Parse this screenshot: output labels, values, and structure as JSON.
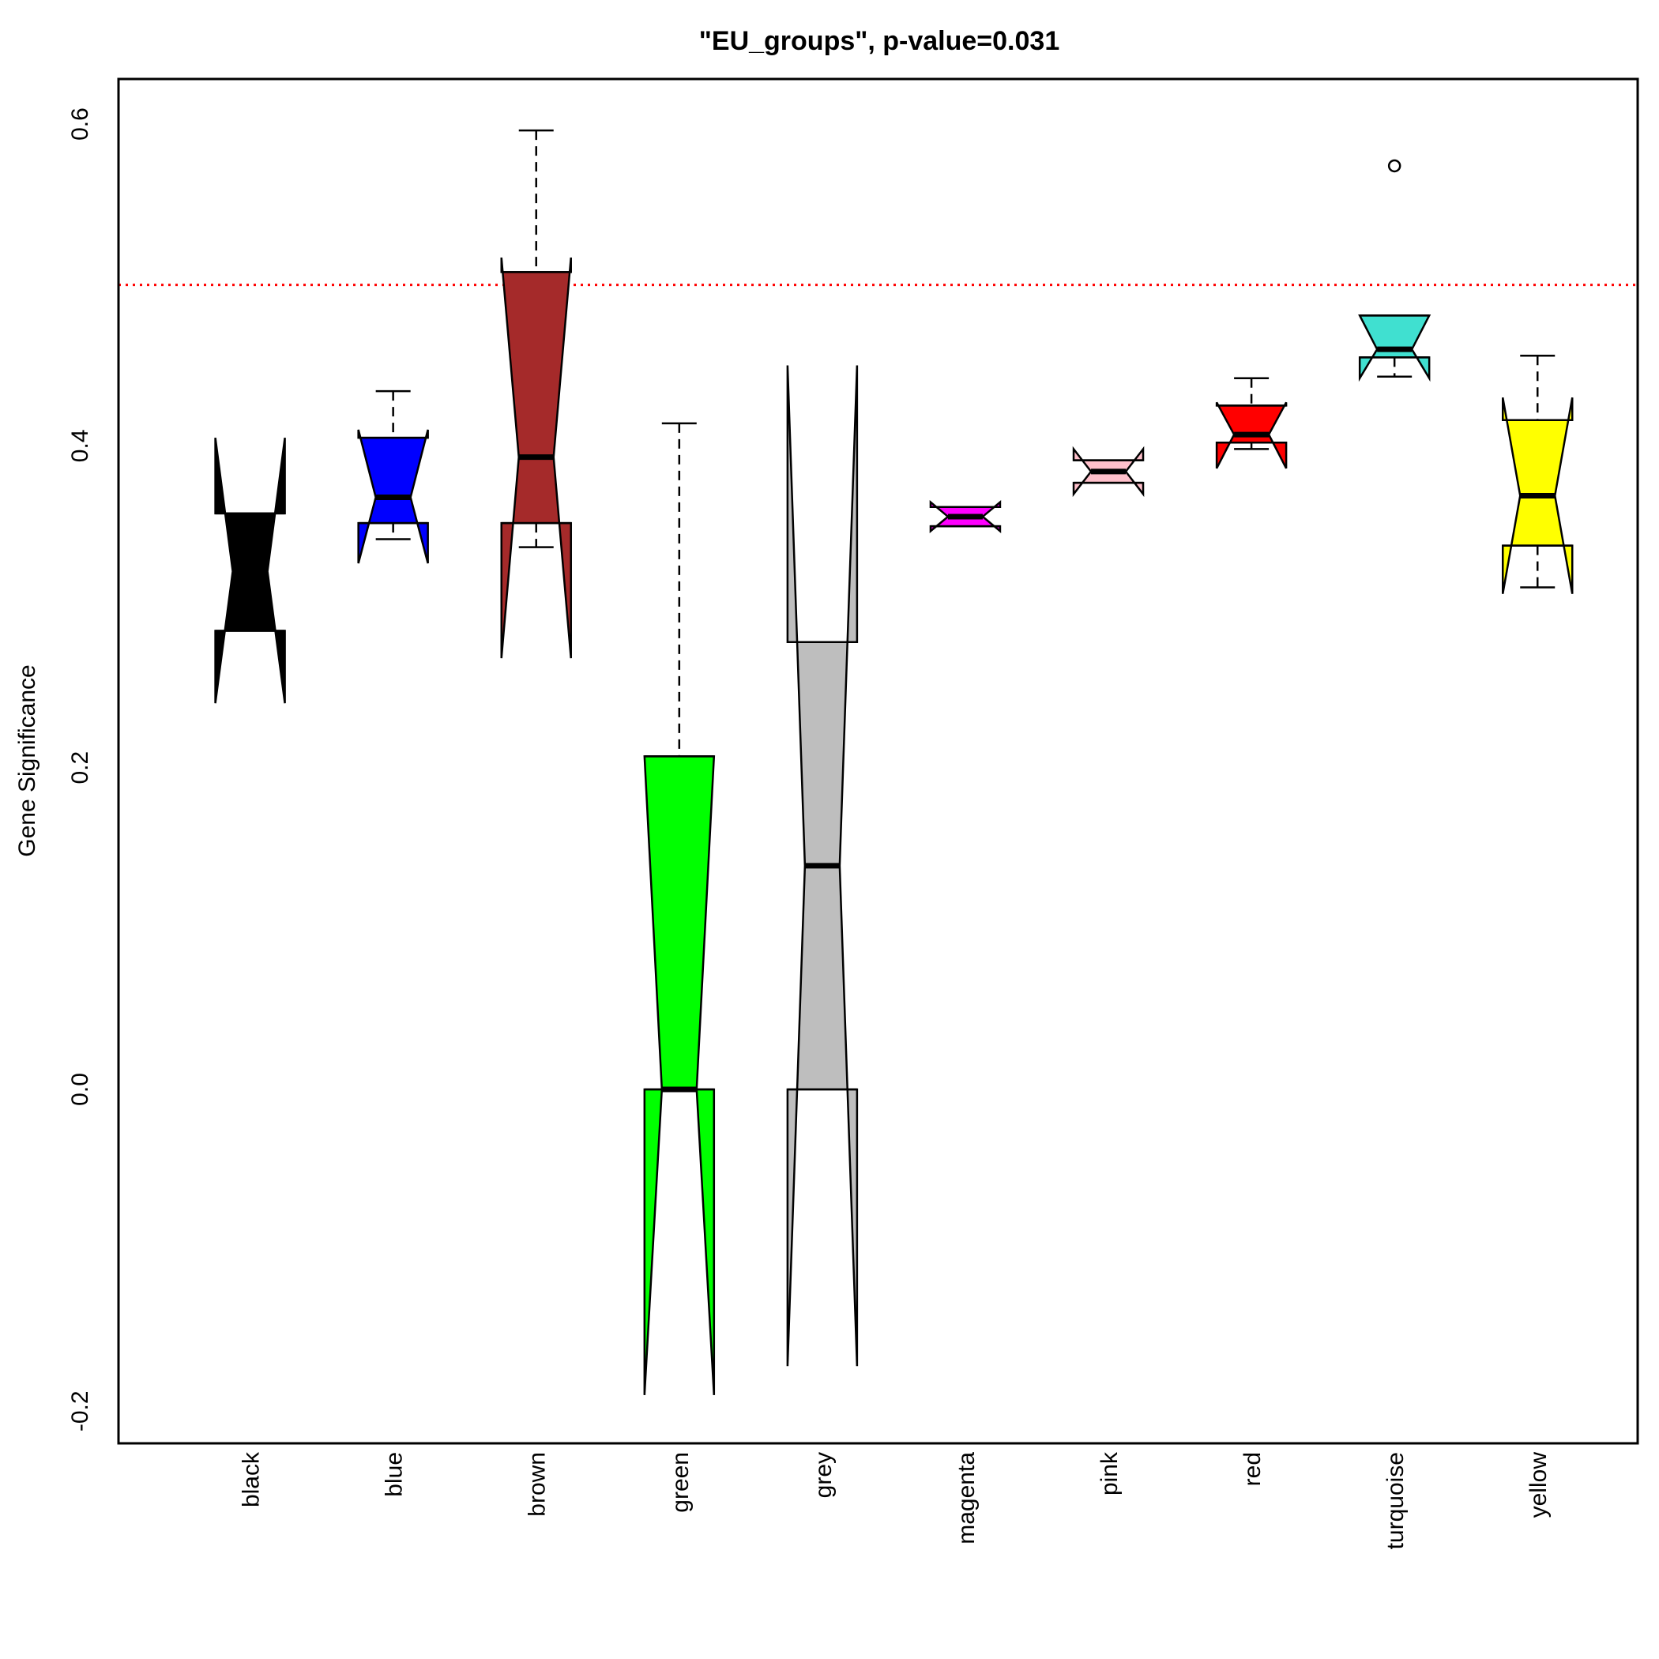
{
  "chart_data": {
    "type": "boxplot",
    "title": "\"EU_groups\", p-value=0.031",
    "ylabel": "Gene Significance",
    "xlabel": "",
    "ylim": [
      -0.22,
      0.628
    ],
    "yticks": [
      -0.2,
      0.0,
      0.2,
      0.4,
      0.6
    ],
    "ytick_labels": [
      "-0.2",
      "0.0",
      "0.2",
      "0.4",
      "0.6"
    ],
    "reference_line": {
      "y": 0.5,
      "color": "#ff0000",
      "style": "dotted"
    },
    "notched": true,
    "grid": false,
    "categories": [
      "black",
      "blue",
      "brown",
      "green",
      "grey",
      "magenta",
      "pink",
      "red",
      "turquoise",
      "yellow"
    ],
    "boxes": [
      {
        "name": "black",
        "color": "#000000",
        "q1": 0.285,
        "median": 0.322,
        "q3": 0.358,
        "notch_low": 0.24,
        "notch_high": 0.405,
        "whisker_low": 0.285,
        "whisker_high": 0.358,
        "outliers": []
      },
      {
        "name": "blue",
        "color": "#0000ff",
        "q1": 0.352,
        "median": 0.368,
        "q3": 0.405,
        "notch_low": 0.327,
        "notch_high": 0.41,
        "whisker_low": 0.342,
        "whisker_high": 0.434,
        "outliers": []
      },
      {
        "name": "brown",
        "color": "#a52a2a",
        "q1": 0.352,
        "median": 0.393,
        "q3": 0.508,
        "notch_low": 0.268,
        "notch_high": 0.517,
        "whisker_low": 0.337,
        "whisker_high": 0.596,
        "outliers": []
      },
      {
        "name": "green",
        "color": "#00ff00",
        "q1": 0.0,
        "median": 0.0,
        "q3": 0.207,
        "notch_low": -0.19,
        "notch_high": 0.207,
        "whisker_low": 0.0,
        "whisker_high": 0.414,
        "outliers": []
      },
      {
        "name": "grey",
        "color": "#bebebe",
        "q1": 0.0,
        "median": 0.139,
        "q3": 0.278,
        "notch_low": -0.172,
        "notch_high": 0.45,
        "whisker_low": 0.0,
        "whisker_high": 0.278,
        "outliers": []
      },
      {
        "name": "magenta",
        "color": "#ff00ff",
        "q1": 0.35,
        "median": 0.356,
        "q3": 0.362,
        "notch_low": 0.347,
        "notch_high": 0.365,
        "whisker_low": 0.35,
        "whisker_high": 0.362,
        "outliers": []
      },
      {
        "name": "pink",
        "color": "#ffc0cb",
        "q1": 0.377,
        "median": 0.384,
        "q3": 0.391,
        "notch_low": 0.37,
        "notch_high": 0.398,
        "whisker_low": 0.377,
        "whisker_high": 0.391,
        "outliers": []
      },
      {
        "name": "red",
        "color": "#ff0000",
        "q1": 0.402,
        "median": 0.407,
        "q3": 0.425,
        "notch_low": 0.386,
        "notch_high": 0.427,
        "whisker_low": 0.398,
        "whisker_high": 0.442,
        "outliers": []
      },
      {
        "name": "turquoise",
        "color": "#40e0d0",
        "q1": 0.455,
        "median": 0.46,
        "q3": 0.481,
        "notch_low": 0.442,
        "notch_high": 0.481,
        "whisker_low": 0.443,
        "whisker_high": 0.481,
        "outliers": [
          0.574
        ]
      },
      {
        "name": "yellow",
        "color": "#ffff00",
        "q1": 0.338,
        "median": 0.369,
        "q3": 0.416,
        "notch_low": 0.308,
        "notch_high": 0.43,
        "whisker_low": 0.312,
        "whisker_high": 0.456,
        "outliers": []
      }
    ]
  }
}
